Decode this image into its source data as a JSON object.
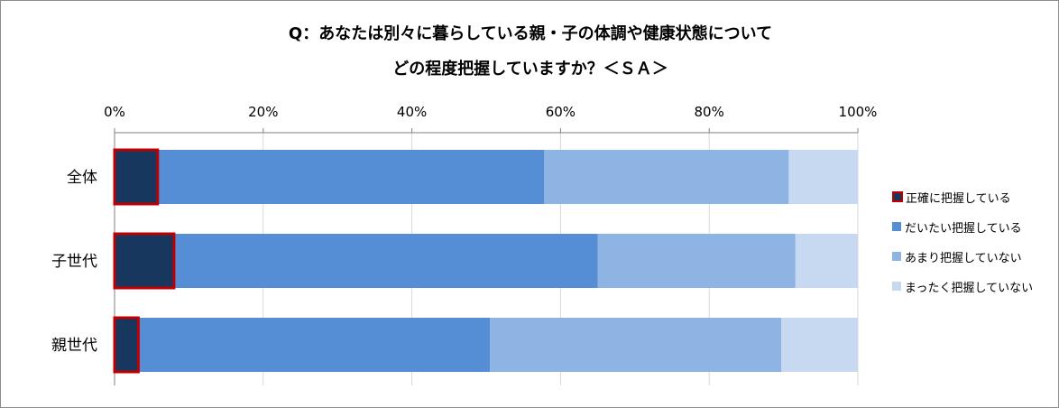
{
  "title_line1": "Q：あなたは別々に暮らしている親・子の体調や健康状態について",
  "title_line2": "どの程度把握していますか？＜ＳＡ＞",
  "chart_data": {
    "type": "bar",
    "orientation": "horizontal",
    "stacked": "percent",
    "categories": [
      "全体",
      "子世代",
      "親世代"
    ],
    "series": [
      {
        "name": "正確に把握している",
        "values": [
          5.8,
          8.0,
          3.2
        ],
        "color": "#17375e",
        "border": "#c00000"
      },
      {
        "name": "だいたい把握している",
        "values": [
          52.0,
          57.0,
          47.3
        ],
        "color": "#558ed5",
        "border": ""
      },
      {
        "name": "あまり把握していない",
        "values": [
          32.9,
          26.6,
          39.2
        ],
        "color": "#8eb4e3",
        "border": ""
      },
      {
        "name": "まったく把握していない",
        "values": [
          9.3,
          8.4,
          10.3
        ],
        "color": "#c6d9f1",
        "border": ""
      }
    ],
    "xlim": [
      0,
      100
    ],
    "xticks": [
      "0%",
      "20%",
      "40%",
      "60%",
      "80%",
      "100%"
    ],
    "grid": true,
    "legend_position": "right"
  }
}
